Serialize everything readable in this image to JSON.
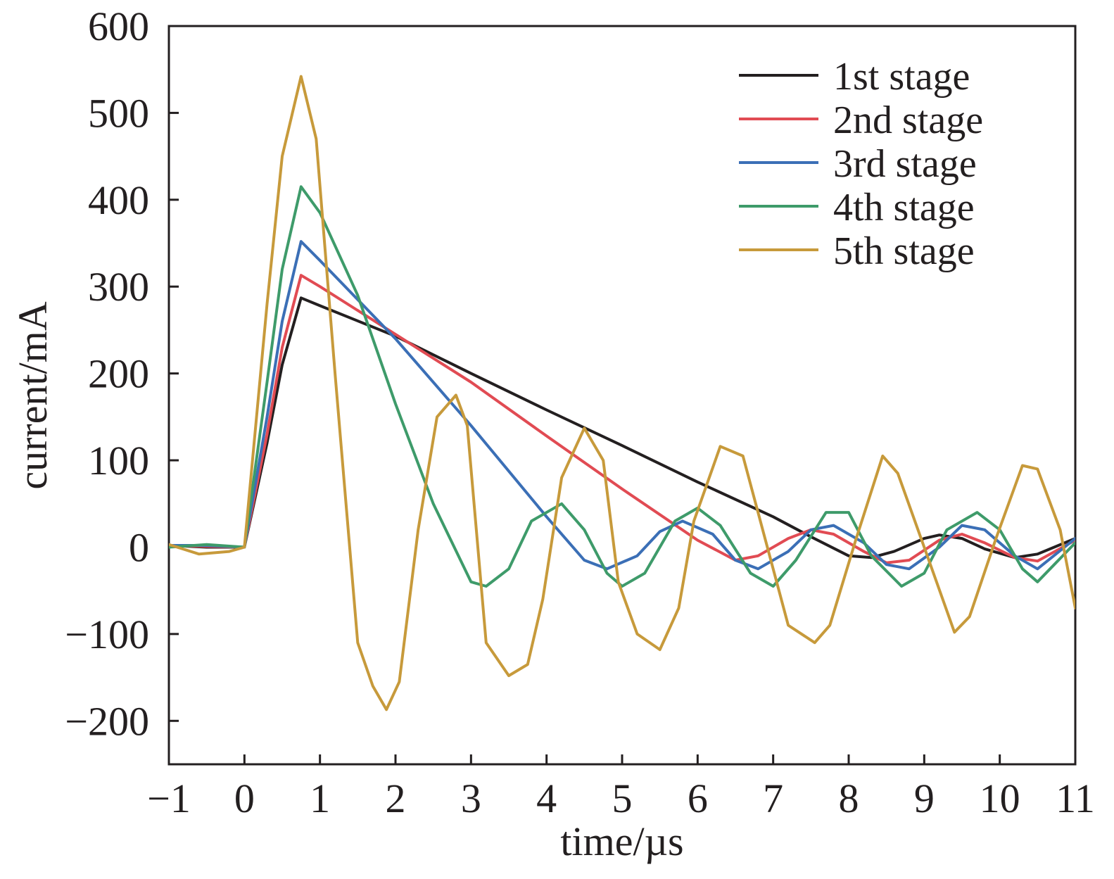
{
  "chart_data": {
    "type": "line",
    "title": "",
    "xlabel": "time/µs",
    "ylabel": "current/mA",
    "xlim": [
      -1,
      11
    ],
    "ylim": [
      -250,
      600
    ],
    "xticks": [
      -1,
      0,
      1,
      2,
      3,
      4,
      5,
      6,
      7,
      8,
      9,
      10,
      11
    ],
    "xtick_labels": [
      "−1",
      "0",
      "1",
      "2",
      "3",
      "4",
      "5",
      "6",
      "7",
      "8",
      "9",
      "10",
      "11"
    ],
    "yticks": [
      -200,
      -100,
      0,
      100,
      200,
      300,
      400,
      500,
      600
    ],
    "ytick_labels": [
      "−200",
      "−100",
      "0",
      "100",
      "200",
      "300",
      "400",
      "500",
      "600"
    ],
    "grid": false,
    "legend_position": "top-right",
    "series": [
      {
        "name": "1st stage",
        "color": "#231f20",
        "x": [
          -1,
          -0.5,
          0,
          0.3,
          0.5,
          0.75,
          1,
          2,
          3,
          4,
          5,
          6,
          7,
          7.5,
          8,
          8.3,
          8.6,
          9,
          9.2,
          9.5,
          9.8,
          10.2,
          10.5,
          11
        ],
        "y": [
          2,
          0,
          0,
          120,
          210,
          287,
          278,
          243,
          200,
          158,
          117,
          75,
          35,
          12,
          -10,
          -12,
          -5,
          10,
          14,
          10,
          -2,
          -12,
          -8,
          10
        ]
      },
      {
        "name": "2nd stage",
        "color": "#e14b53",
        "x": [
          -1,
          -0.5,
          0,
          0.3,
          0.5,
          0.75,
          1,
          2,
          3,
          4,
          5,
          6,
          6.5,
          6.8,
          7.2,
          7.5,
          7.8,
          8.2,
          8.5,
          8.8,
          9.2,
          9.5,
          9.8,
          10.2,
          10.5,
          11
        ],
        "y": [
          2,
          1,
          0,
          130,
          230,
          313,
          300,
          245,
          190,
          128,
          67,
          8,
          -15,
          -10,
          10,
          20,
          15,
          -5,
          -18,
          -15,
          8,
          15,
          5,
          -12,
          -16,
          8
        ]
      },
      {
        "name": "3rd stage",
        "color": "#3b6fb6",
        "x": [
          -1,
          -0.5,
          0,
          0.3,
          0.5,
          0.75,
          1,
          2,
          3,
          4,
          4.5,
          4.8,
          5.2,
          5.5,
          5.8,
          6.2,
          6.5,
          6.8,
          7.2,
          7.5,
          7.8,
          8.2,
          8.5,
          8.8,
          9.2,
          9.5,
          9.8,
          10.2,
          10.5,
          11
        ],
        "y": [
          2,
          2,
          0,
          150,
          260,
          352,
          330,
          240,
          140,
          35,
          -15,
          -25,
          -10,
          18,
          30,
          15,
          -15,
          -25,
          -5,
          20,
          25,
          5,
          -20,
          -25,
          0,
          25,
          20,
          -10,
          -25,
          10
        ]
      },
      {
        "name": "4th stage",
        "color": "#3e9b6a",
        "x": [
          -1,
          -0.5,
          0,
          0.3,
          0.5,
          0.75,
          1,
          1.5,
          2,
          2.5,
          3,
          3.2,
          3.5,
          3.8,
          4.2,
          4.5,
          4.8,
          5,
          5.3,
          5.7,
          6,
          6.3,
          6.7,
          7,
          7.3,
          7.7,
          8,
          8.3,
          8.7,
          9,
          9.3,
          9.7,
          10,
          10.3,
          10.5,
          11
        ],
        "y": [
          0,
          3,
          0,
          190,
          320,
          415,
          385,
          290,
          165,
          50,
          -40,
          -45,
          -25,
          30,
          50,
          20,
          -30,
          -45,
          -30,
          30,
          45,
          25,
          -30,
          -45,
          -15,
          40,
          40,
          -10,
          -45,
          -30,
          20,
          40,
          20,
          -25,
          -40,
          5
        ]
      },
      {
        "name": "5th stage",
        "color": "#c79a3b",
        "x": [
          -1,
          -0.6,
          -0.2,
          0,
          0.3,
          0.5,
          0.75,
          0.95,
          1.2,
          1.5,
          1.7,
          1.88,
          2.05,
          2.3,
          2.55,
          2.8,
          2.95,
          3.2,
          3.5,
          3.75,
          3.95,
          4.2,
          4.5,
          4.75,
          4.95,
          5.2,
          5.5,
          5.75,
          5.95,
          6.3,
          6.6,
          6.8,
          7.2,
          7.55,
          7.75,
          8.1,
          8.45,
          8.65,
          9,
          9.4,
          9.6,
          9.95,
          10.3,
          10.5,
          10.8,
          11
        ],
        "y": [
          3,
          -8,
          -5,
          0,
          280,
          450,
          542,
          470,
          200,
          -110,
          -160,
          -187,
          -155,
          20,
          150,
          175,
          140,
          -110,
          -148,
          -135,
          -60,
          80,
          137,
          100,
          -40,
          -100,
          -118,
          -70,
          30,
          116,
          105,
          40,
          -90,
          -110,
          -90,
          10,
          105,
          85,
          0,
          -98,
          -80,
          10,
          94,
          90,
          20,
          -70
        ]
      }
    ]
  }
}
